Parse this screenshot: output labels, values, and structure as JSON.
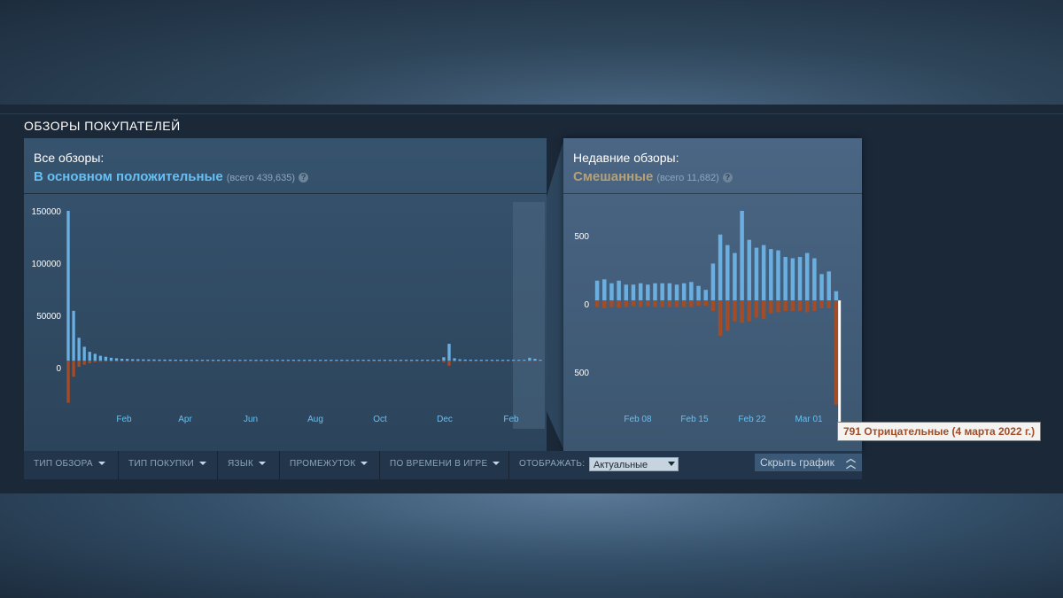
{
  "section_title": "ОБЗОРЫ ПОКУПАТЕЛЕЙ",
  "colors": {
    "positive": "#66c0f4",
    "positive_bar": "#6baee0",
    "negative_bar": "#a34c25",
    "mixed": "#b9a074",
    "highlight_bar": "#ffffff"
  },
  "all_reviews": {
    "label": "Все обзоры:",
    "rating": "В основном положительные",
    "total": "(всего 439,635)",
    "help": "?"
  },
  "recent_reviews": {
    "label": "Недавние обзоры:",
    "rating": "Смешанные",
    "total": "(всего 11,682)",
    "help": "?"
  },
  "chart_data": [
    {
      "type": "bar",
      "name": "all-reviews-histogram",
      "x_ticks": [
        "Feb",
        "Apr",
        "Jun",
        "Aug",
        "Oct",
        "Dec",
        "Feb"
      ],
      "y_ticks": [
        "150000",
        "100000",
        "50000",
        "0"
      ],
      "ylim": [
        -45000,
        150000
      ],
      "positive": [
        150000,
        50000,
        23000,
        14000,
        9000,
        7000,
        5000,
        4000,
        3000,
        2500,
        2000,
        1800,
        1600,
        1500,
        1400,
        1300,
        1300,
        1200,
        1200,
        1200,
        1100,
        1100,
        1100,
        1000,
        1000,
        1000,
        1000,
        1000,
        1000,
        1000,
        1000,
        1000,
        1000,
        1000,
        1000,
        1000,
        1000,
        1000,
        1000,
        1000,
        1000,
        1000,
        1000,
        1000,
        1000,
        1000,
        1000,
        1000,
        1000,
        1000,
        1000,
        1000,
        1000,
        1000,
        1000,
        1000,
        1000,
        1000,
        1000,
        1000,
        1000,
        1000,
        1000,
        1000,
        1000,
        1000,
        1000,
        1000,
        1000,
        1000,
        3500,
        17000,
        2500,
        1500,
        1200,
        1100,
        1000,
        1000,
        1000,
        1000,
        1000,
        1000,
        1000,
        1000,
        1000,
        1000,
        3000,
        2000,
        1000
      ],
      "negative": [
        -42000,
        -16000,
        -6000,
        -4000,
        -2500,
        -1500,
        -1000,
        -800,
        -600,
        -500,
        -400,
        -400,
        -300,
        -300,
        -300,
        -300,
        -300,
        -300,
        -300,
        -300,
        -300,
        -300,
        -300,
        -300,
        -300,
        -300,
        -300,
        -300,
        -300,
        -300,
        -300,
        -300,
        -300,
        -300,
        -300,
        -300,
        -300,
        -300,
        -300,
        -300,
        -300,
        -300,
        -300,
        -300,
        -300,
        -300,
        -300,
        -300,
        -300,
        -300,
        -300,
        -300,
        -300,
        -300,
        -300,
        -300,
        -300,
        -300,
        -300,
        -300,
        -300,
        -300,
        -300,
        -300,
        -300,
        -300,
        -300,
        -300,
        -300,
        -300,
        -1500,
        -5000,
        -800,
        -400,
        -300,
        -300,
        -300,
        -300,
        -300,
        -300,
        -300,
        -300,
        -300,
        -300,
        -300,
        -300,
        -800,
        -600,
        -300
      ]
    },
    {
      "type": "bar",
      "name": "recent-reviews-histogram",
      "x_ticks": [
        "Feb 08",
        "Feb 15",
        "Feb 22",
        "Mar 01"
      ],
      "y_ticks": [
        "500",
        "0",
        "500"
      ],
      "ylim": [
        -800,
        680
      ],
      "positive": [
        150,
        160,
        130,
        150,
        120,
        120,
        130,
        120,
        130,
        130,
        130,
        120,
        130,
        140,
        110,
        80,
        280,
        500,
        420,
        360,
        680,
        460,
        400,
        420,
        390,
        380,
        330,
        320,
        330,
        360,
        320,
        200,
        220,
        70
      ],
      "negative": [
        -50,
        -60,
        -50,
        -55,
        -50,
        -45,
        -50,
        -45,
        -50,
        -50,
        -50,
        -50,
        -50,
        -50,
        -40,
        -40,
        -80,
        -270,
        -230,
        -160,
        -170,
        -160,
        -130,
        -140,
        -100,
        -90,
        -80,
        -80,
        -80,
        -90,
        -80,
        -60,
        -60,
        -791
      ],
      "highlight_index": 33
    }
  ],
  "tooltip": "791 Отрицательные (4 марта 2022 г.)",
  "filters": [
    {
      "label": "ТИП ОБЗОРА"
    },
    {
      "label": "ТИП ПОКУПКИ"
    },
    {
      "label": "ЯЗЫК"
    },
    {
      "label": "ПРОМЕЖУТОК"
    },
    {
      "label": "ПО ВРЕМЕНИ В ИГРЕ"
    }
  ],
  "display": {
    "label": "ОТОБРАЖАТЬ:",
    "selected": "Актуальные"
  },
  "hide_chart": {
    "label": "Скрыть график",
    "icon": "double-chevron-up-icon"
  }
}
